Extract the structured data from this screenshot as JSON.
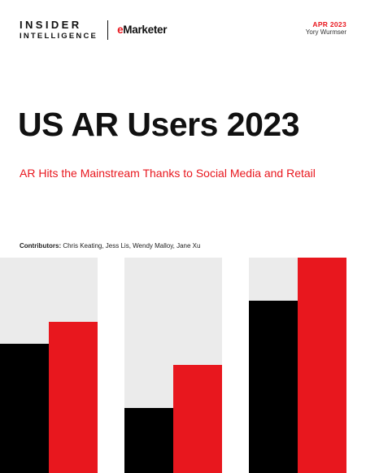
{
  "brand": {
    "logo_line1": "INSIDER",
    "logo_line2": "INTELLIGENCE",
    "partner_e": "e",
    "partner_rest": "Marketer"
  },
  "meta": {
    "date": "APR 2023",
    "author": "Yory Wurmser"
  },
  "report": {
    "title": "US AR Users 2023",
    "subtitle": "AR Hits the Mainstream Thanks to Social Media and Retail",
    "contributors_label": "Contributors:",
    "contributors": " Chris Keating, Jess Lis, Wendy Malloy, Jane Xu"
  },
  "colors": {
    "accent_red": "#e8171e",
    "bar_black": "#000000",
    "panel_gray": "#ebebeb"
  },
  "decoration": {
    "groups": [
      {
        "black_level": 0.6,
        "red_level": 0.7
      },
      {
        "black_level": 0.3,
        "red_level": 0.5
      },
      {
        "black_level": 0.8,
        "red_level": 1.0
      }
    ]
  }
}
